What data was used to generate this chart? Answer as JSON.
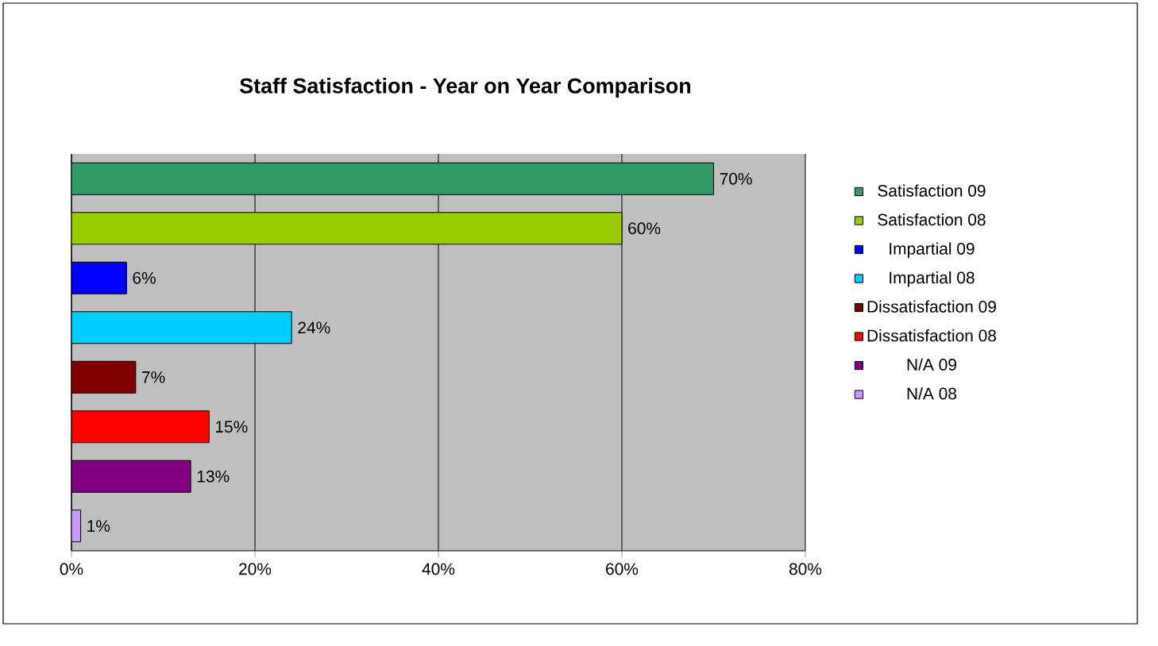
{
  "chart_data": {
    "type": "bar",
    "orientation": "horizontal",
    "title": "Staff Satisfaction - Year on Year Comparison",
    "categories": [
      null
    ],
    "series": [
      {
        "name": "Satisfaction 09",
        "color": "#339966",
        "values": [
          70
        ],
        "value_labels": [
          "70%"
        ]
      },
      {
        "name": "Satisfaction 08",
        "color": "#99cc00",
        "values": [
          60
        ],
        "value_labels": [
          "60%"
        ]
      },
      {
        "name": "Impartial 09",
        "color": "#0000ff",
        "values": [
          6
        ],
        "value_labels": [
          "6%"
        ]
      },
      {
        "name": "Impartial 08",
        "color": "#00ccff",
        "values": [
          24
        ],
        "value_labels": [
          "24%"
        ]
      },
      {
        "name": "Dissatisfaction 09",
        "color": "#800000",
        "values": [
          7
        ],
        "value_labels": [
          "7%"
        ]
      },
      {
        "name": "Dissatisfaction 08",
        "color": "#ff0000",
        "values": [
          15
        ],
        "value_labels": [
          "15%"
        ]
      },
      {
        "name": "N/A 09",
        "color": "#800080",
        "values": [
          13
        ],
        "value_labels": [
          "13%"
        ]
      },
      {
        "name": "N/A 08",
        "color": "#cc99ff",
        "values": [
          1
        ],
        "value_labels": [
          "1%"
        ]
      }
    ],
    "xlim": [
      0,
      80
    ],
    "xticks": [
      {
        "value": 0,
        "label": "0%"
      },
      {
        "value": 20,
        "label": "20%"
      },
      {
        "value": 40,
        "label": "40%"
      },
      {
        "value": 60,
        "label": "60%"
      },
      {
        "value": 80,
        "label": "80%"
      }
    ],
    "grid": "x",
    "legend": "right"
  }
}
